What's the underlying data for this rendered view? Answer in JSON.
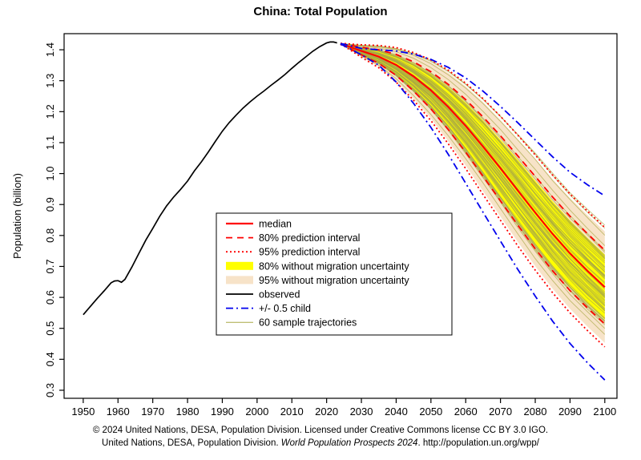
{
  "footer": {
    "line1": "© 2024 United Nations, DESA, Population Division. Licensed under Creative Commons license CC BY 3.0 IGO.",
    "line2_pre": "United Nations, DESA, Population Division. ",
    "line2_italic": "World Population Prospects 2024",
    "line2_post": ". http://population.un.org/wpp/"
  },
  "chart_data": {
    "type": "line",
    "title": "China: Total Population",
    "xlabel": "",
    "ylabel": "Population (billion)",
    "xlim": [
      1944.5,
      2103.5
    ],
    "ylim": [
      0.274,
      1.452
    ],
    "x_ticks": [
      1950,
      1960,
      1970,
      1980,
      1990,
      2000,
      2010,
      2020,
      2030,
      2040,
      2050,
      2060,
      2070,
      2080,
      2090,
      2100
    ],
    "y_ticks": [
      0.3,
      0.4,
      0.5,
      0.6,
      0.7,
      0.8,
      0.9,
      1.0,
      1.1,
      1.2,
      1.3,
      1.4
    ],
    "grid": false,
    "legend_position": "inside-center-left",
    "colors": {
      "red": "#ff0000",
      "blue": "#0000ee",
      "black": "#000000",
      "band_80_no_migration": "#ffff00",
      "band_95_no_migration": "#f7e3c8",
      "trajectory": "#a8a845"
    },
    "observed": {
      "years": [
        1950,
        1952,
        1954,
        1956,
        1958,
        1959,
        1960,
        1961,
        1962,
        1964,
        1966,
        1968,
        1970,
        1972,
        1974,
        1976,
        1978,
        1980,
        1982,
        1984,
        1986,
        1988,
        1990,
        1992,
        1994,
        1996,
        1998,
        2000,
        2002,
        2004,
        2006,
        2008,
        2010,
        2012,
        2014,
        2016,
        2018,
        2020,
        2021,
        2022,
        2023
      ],
      "values": [
        0.544,
        0.57,
        0.596,
        0.621,
        0.647,
        0.653,
        0.654,
        0.649,
        0.658,
        0.698,
        0.742,
        0.785,
        0.823,
        0.862,
        0.896,
        0.924,
        0.949,
        0.976,
        1.009,
        1.038,
        1.07,
        1.104,
        1.137,
        1.165,
        1.189,
        1.212,
        1.232,
        1.25,
        1.267,
        1.285,
        1.302,
        1.32,
        1.34,
        1.359,
        1.377,
        1.395,
        1.41,
        1.422,
        1.425,
        1.425,
        1.422
      ]
    },
    "projection": {
      "years": [
        2024,
        2025,
        2030,
        2035,
        2040,
        2045,
        2050,
        2055,
        2060,
        2065,
        2070,
        2075,
        2080,
        2085,
        2090,
        2095,
        2100
      ],
      "median": [
        1.419,
        1.416,
        1.396,
        1.378,
        1.351,
        1.314,
        1.269,
        1.215,
        1.154,
        1.087,
        1.017,
        0.945,
        0.874,
        0.805,
        0.742,
        0.686,
        0.633
      ],
      "pi80_upper": [
        1.42,
        1.418,
        1.408,
        1.4,
        1.385,
        1.361,
        1.329,
        1.288,
        1.239,
        1.183,
        1.122,
        1.057,
        0.991,
        0.924,
        0.862,
        0.806,
        0.752
      ],
      "pi80_lower": [
        1.418,
        1.414,
        1.384,
        1.356,
        1.317,
        1.267,
        1.209,
        1.142,
        1.069,
        0.991,
        0.912,
        0.833,
        0.757,
        0.686,
        0.622,
        0.566,
        0.514
      ],
      "pi95_upper": [
        1.421,
        1.42,
        1.416,
        1.414,
        1.407,
        1.391,
        1.367,
        1.334,
        1.292,
        1.242,
        1.185,
        1.124,
        1.06,
        0.995,
        0.934,
        0.879,
        0.826
      ],
      "pi95_lower": [
        1.417,
        1.412,
        1.376,
        1.342,
        1.295,
        1.237,
        1.171,
        1.096,
        1.016,
        0.932,
        0.849,
        0.766,
        0.688,
        0.615,
        0.55,
        0.493,
        0.44
      ],
      "nomig80_upper": [
        1.42,
        1.418,
        1.407,
        1.397,
        1.381,
        1.355,
        1.322,
        1.279,
        1.229,
        1.171,
        1.109,
        1.044,
        0.977,
        0.91,
        0.848,
        0.792,
        0.738
      ],
      "nomig80_lower": [
        1.418,
        1.414,
        1.385,
        1.359,
        1.321,
        1.273,
        1.216,
        1.151,
        1.079,
        1.003,
        0.925,
        0.846,
        0.771,
        0.7,
        0.636,
        0.58,
        0.528
      ],
      "nomig95_upper": [
        1.421,
        1.42,
        1.415,
        1.411,
        1.403,
        1.386,
        1.36,
        1.326,
        1.282,
        1.231,
        1.173,
        1.111,
        1.047,
        0.982,
        0.921,
        0.866,
        0.813
      ],
      "nomig95_lower": [
        1.417,
        1.412,
        1.377,
        1.345,
        1.299,
        1.242,
        1.178,
        1.104,
        1.026,
        0.943,
        0.861,
        0.779,
        0.701,
        0.628,
        0.563,
        0.506,
        0.453
      ],
      "half_child_upper": [
        1.42,
        1.418,
        1.404,
        1.4,
        1.396,
        1.386,
        1.369,
        1.343,
        1.309,
        1.266,
        1.217,
        1.164,
        1.109,
        1.054,
        1.004,
        0.964,
        0.928
      ],
      "half_child_lower": [
        1.418,
        1.413,
        1.384,
        1.35,
        1.296,
        1.227,
        1.149,
        1.062,
        0.969,
        0.875,
        0.782,
        0.69,
        0.604,
        0.523,
        0.451,
        0.389,
        0.333
      ]
    },
    "sample_trajectories": {
      "count": 60
    },
    "legend": [
      {
        "label": "median",
        "style": "red-solid"
      },
      {
        "label": "80% prediction interval",
        "style": "red-dashed"
      },
      {
        "label": "95% prediction interval",
        "style": "red-dotted"
      },
      {
        "label": "80% without migration uncertainty",
        "style": "yellow-band"
      },
      {
        "label": "95% without migration uncertainty",
        "style": "tan-band"
      },
      {
        "label": "observed",
        "style": "black-solid"
      },
      {
        "label": "+/- 0.5 child",
        "style": "blue-dashdot"
      },
      {
        "label": "60 sample trajectories",
        "style": "trajectory"
      }
    ]
  }
}
